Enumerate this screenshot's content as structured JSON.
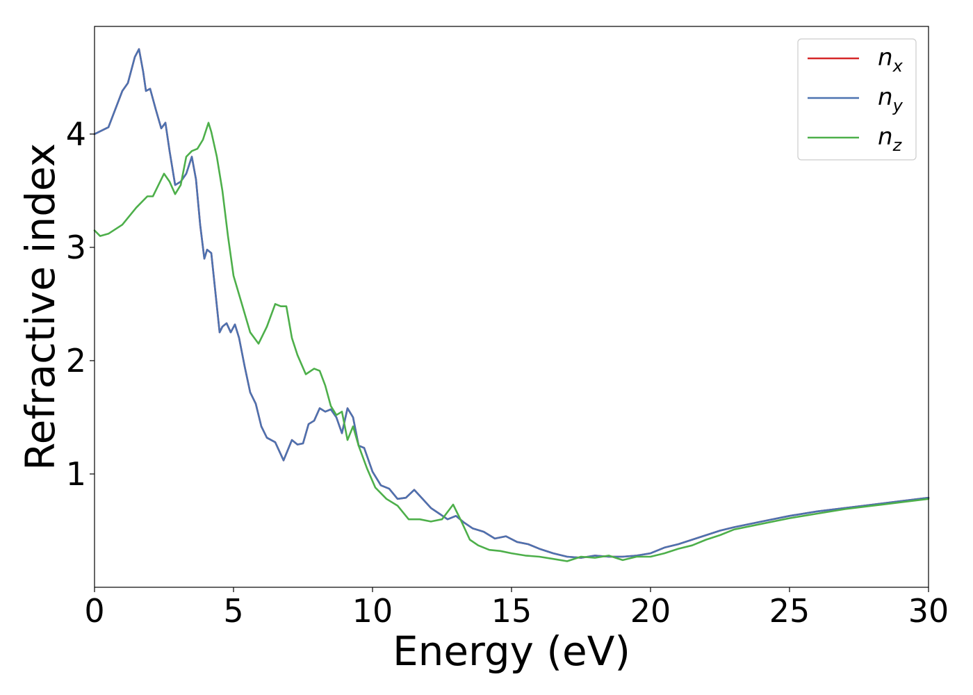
{
  "chart_data": {
    "type": "line",
    "xlabel": "Energy (eV)",
    "ylabel": "Refractive index",
    "xlim": [
      0,
      30
    ],
    "ylim": [
      0.0,
      4.95
    ],
    "xticks": [
      0,
      5,
      10,
      15,
      20,
      25,
      30
    ],
    "xtick_labels": [
      "0",
      "5",
      "10",
      "15",
      "20",
      "25",
      "30"
    ],
    "yticks": [
      1,
      2,
      3,
      4
    ],
    "ytick_labels": [
      "1",
      "2",
      "3",
      "4"
    ],
    "grid": false,
    "legend_position": "top-right",
    "series": [
      {
        "name": "n_x",
        "legend_base": "n",
        "legend_sub": "x",
        "color": "#d62728",
        "x": [
          0,
          0.5,
          1.0,
          1.2,
          1.45,
          1.6,
          1.75,
          1.85,
          2.0,
          2.2,
          2.4,
          2.55,
          2.7,
          2.9,
          3.1,
          3.3,
          3.5,
          3.65,
          3.8,
          3.95,
          4.05,
          4.2,
          4.35,
          4.5,
          4.6,
          4.75,
          4.9,
          5.05,
          5.2,
          5.4,
          5.6,
          5.8,
          6.0,
          6.2,
          6.5,
          6.8,
          7.1,
          7.3,
          7.5,
          7.7,
          7.9,
          8.1,
          8.3,
          8.5,
          8.7,
          8.9,
          9.1,
          9.3,
          9.5,
          9.7,
          10.0,
          10.3,
          10.6,
          10.9,
          11.2,
          11.5,
          11.8,
          12.1,
          12.4,
          12.7,
          13.0,
          13.3,
          13.6,
          14.0,
          14.4,
          14.8,
          15.2,
          15.6,
          16.0,
          16.5,
          17.0,
          17.5,
          18.0,
          18.5,
          19.0,
          19.5,
          20.0,
          20.5,
          21.0,
          21.5,
          22.0,
          22.5,
          23.0,
          24.0,
          25.0,
          26.0,
          27.0,
          28.0,
          29.0,
          30.0
        ],
        "y": [
          4.0,
          4.06,
          4.38,
          4.45,
          4.68,
          4.75,
          4.55,
          4.38,
          4.4,
          4.22,
          4.05,
          4.1,
          3.85,
          3.55,
          3.58,
          3.65,
          3.8,
          3.6,
          3.2,
          2.9,
          2.98,
          2.95,
          2.6,
          2.25,
          2.3,
          2.33,
          2.25,
          2.32,
          2.2,
          1.95,
          1.72,
          1.62,
          1.42,
          1.32,
          1.28,
          1.12,
          1.3,
          1.26,
          1.27,
          1.44,
          1.47,
          1.58,
          1.55,
          1.57,
          1.5,
          1.36,
          1.58,
          1.5,
          1.25,
          1.23,
          1.02,
          0.9,
          0.87,
          0.78,
          0.79,
          0.86,
          0.78,
          0.7,
          0.65,
          0.6,
          0.63,
          0.57,
          0.52,
          0.49,
          0.43,
          0.45,
          0.4,
          0.38,
          0.34,
          0.3,
          0.27,
          0.26,
          0.28,
          0.27,
          0.27,
          0.28,
          0.3,
          0.35,
          0.38,
          0.42,
          0.46,
          0.5,
          0.53,
          0.58,
          0.63,
          0.67,
          0.7,
          0.73,
          0.76,
          0.79
        ]
      },
      {
        "name": "n_y",
        "legend_base": "n",
        "legend_sub": "y",
        "color": "#4c72b0",
        "x": [
          0,
          0.5,
          1.0,
          1.2,
          1.45,
          1.6,
          1.75,
          1.85,
          2.0,
          2.2,
          2.4,
          2.55,
          2.7,
          2.9,
          3.1,
          3.3,
          3.5,
          3.65,
          3.8,
          3.95,
          4.05,
          4.2,
          4.35,
          4.5,
          4.6,
          4.75,
          4.9,
          5.05,
          5.2,
          5.4,
          5.6,
          5.8,
          6.0,
          6.2,
          6.5,
          6.8,
          7.1,
          7.3,
          7.5,
          7.7,
          7.9,
          8.1,
          8.3,
          8.5,
          8.7,
          8.9,
          9.1,
          9.3,
          9.5,
          9.7,
          10.0,
          10.3,
          10.6,
          10.9,
          11.2,
          11.5,
          11.8,
          12.1,
          12.4,
          12.7,
          13.0,
          13.3,
          13.6,
          14.0,
          14.4,
          14.8,
          15.2,
          15.6,
          16.0,
          16.5,
          17.0,
          17.5,
          18.0,
          18.5,
          19.0,
          19.5,
          20.0,
          20.5,
          21.0,
          21.5,
          22.0,
          22.5,
          23.0,
          24.0,
          25.0,
          26.0,
          27.0,
          28.0,
          29.0,
          30.0
        ],
        "y": [
          4.0,
          4.06,
          4.38,
          4.45,
          4.68,
          4.75,
          4.55,
          4.38,
          4.4,
          4.22,
          4.05,
          4.1,
          3.85,
          3.55,
          3.58,
          3.65,
          3.8,
          3.6,
          3.2,
          2.9,
          2.98,
          2.95,
          2.6,
          2.25,
          2.3,
          2.33,
          2.25,
          2.32,
          2.2,
          1.95,
          1.72,
          1.62,
          1.42,
          1.32,
          1.28,
          1.12,
          1.3,
          1.26,
          1.27,
          1.44,
          1.47,
          1.58,
          1.55,
          1.57,
          1.5,
          1.36,
          1.58,
          1.5,
          1.25,
          1.23,
          1.02,
          0.9,
          0.87,
          0.78,
          0.79,
          0.86,
          0.78,
          0.7,
          0.65,
          0.6,
          0.63,
          0.57,
          0.52,
          0.49,
          0.43,
          0.45,
          0.4,
          0.38,
          0.34,
          0.3,
          0.27,
          0.26,
          0.28,
          0.27,
          0.27,
          0.28,
          0.3,
          0.35,
          0.38,
          0.42,
          0.46,
          0.5,
          0.53,
          0.58,
          0.63,
          0.67,
          0.7,
          0.73,
          0.76,
          0.79
        ]
      },
      {
        "name": "n_z",
        "legend_base": "n",
        "legend_sub": "z",
        "color": "#4daf4a",
        "x": [
          0,
          0.2,
          0.5,
          1.0,
          1.5,
          1.9,
          2.1,
          2.3,
          2.5,
          2.7,
          2.9,
          3.1,
          3.3,
          3.5,
          3.7,
          3.9,
          4.1,
          4.2,
          4.4,
          4.6,
          4.8,
          5.0,
          5.3,
          5.6,
          5.9,
          6.2,
          6.5,
          6.7,
          6.9,
          7.1,
          7.3,
          7.6,
          7.9,
          8.1,
          8.3,
          8.5,
          8.7,
          8.9,
          9.1,
          9.3,
          9.5,
          9.8,
          10.1,
          10.5,
          10.9,
          11.3,
          11.7,
          12.1,
          12.5,
          12.9,
          13.2,
          13.5,
          13.8,
          14.2,
          14.6,
          15.0,
          15.5,
          16.0,
          16.5,
          17.0,
          17.5,
          18.0,
          18.5,
          19.0,
          19.5,
          20.0,
          20.5,
          21.0,
          21.5,
          22.0,
          22.5,
          23.0,
          24.0,
          25.0,
          26.0,
          27.0,
          28.0,
          29.0,
          30.0
        ],
        "y": [
          3.15,
          3.1,
          3.12,
          3.2,
          3.35,
          3.45,
          3.45,
          3.55,
          3.65,
          3.58,
          3.47,
          3.55,
          3.8,
          3.85,
          3.87,
          3.95,
          4.1,
          4.02,
          3.8,
          3.5,
          3.1,
          2.75,
          2.5,
          2.25,
          2.15,
          2.3,
          2.5,
          2.48,
          2.48,
          2.2,
          2.05,
          1.88,
          1.93,
          1.91,
          1.78,
          1.6,
          1.52,
          1.55,
          1.3,
          1.42,
          1.25,
          1.05,
          0.88,
          0.78,
          0.72,
          0.6,
          0.6,
          0.58,
          0.6,
          0.73,
          0.58,
          0.42,
          0.37,
          0.33,
          0.32,
          0.3,
          0.28,
          0.27,
          0.25,
          0.23,
          0.27,
          0.26,
          0.28,
          0.24,
          0.27,
          0.27,
          0.3,
          0.34,
          0.37,
          0.42,
          0.46,
          0.51,
          0.56,
          0.61,
          0.65,
          0.69,
          0.72,
          0.75,
          0.78
        ]
      }
    ]
  }
}
